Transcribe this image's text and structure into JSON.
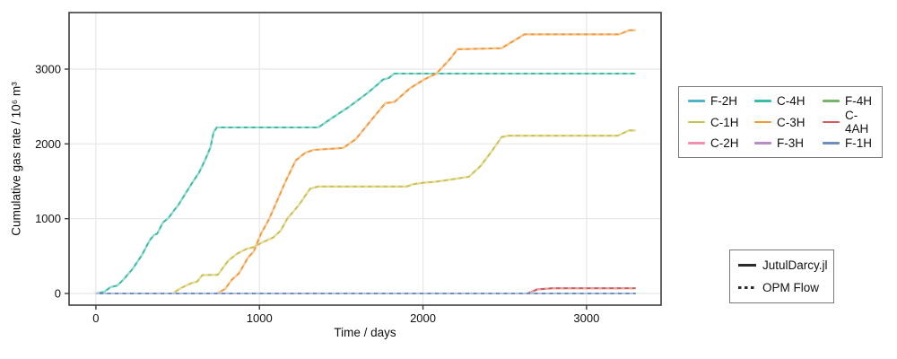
{
  "figure": {
    "background": "#ffffff",
    "axis_color": "#3d3d3d",
    "grid_color": "#e7e7e7",
    "text_color": "#111111",
    "legend_border_color": "#7a7a7a",
    "comparison_line_color": "#2b2b2b"
  },
  "chart_data": {
    "type": "line",
    "title": "",
    "xlabel": "Time / days",
    "ylabel": "Cumulative gas rate / 10⁶ m³",
    "xlim": [
      -164,
      3456
    ],
    "ylim": [
      -156,
      3756
    ],
    "xticks": [
      0,
      1000,
      2000,
      3000
    ],
    "yticks": [
      0,
      1000,
      2000,
      3000
    ],
    "grid": true,
    "legend_position": "right",
    "legend_order": [
      "F-2H",
      "C-4H",
      "F-4H",
      "C-1H",
      "C-3H",
      "C-4AH",
      "C-2H",
      "F-3H",
      "F-1H"
    ],
    "comparison": [
      {
        "label": "JutulDarcy.jl",
        "style": "solid"
      },
      {
        "label": "OPM Flow",
        "style": "dashed"
      }
    ],
    "series": [
      {
        "name": "F-2H",
        "color": "#4FB2C6",
        "t": [
          0,
          3300
        ],
        "v": [
          0,
          0
        ]
      },
      {
        "name": "C-1H",
        "color": "#CCC04F",
        "t": [
          0,
          470,
          510,
          555,
          580,
          620,
          650,
          745,
          810,
          865,
          920,
          965,
          1015,
          1085,
          1130,
          1170,
          1240,
          1310,
          1360,
          1900,
          1950,
          2000,
          2080,
          2160,
          2280,
          2350,
          2420,
          2480,
          2520,
          3190,
          3260,
          3300
        ],
        "v": [
          0,
          0,
          60,
          110,
          135,
          160,
          245,
          250,
          440,
          535,
          595,
          620,
          680,
          750,
          840,
          1000,
          1180,
          1400,
          1430,
          1430,
          1465,
          1480,
          1495,
          1520,
          1560,
          1700,
          1900,
          2090,
          2110,
          2110,
          2180,
          2180
        ]
      },
      {
        "name": "C-2H",
        "color": "#F28FB2",
        "t": [
          0,
          3300
        ],
        "v": [
          0,
          0
        ]
      },
      {
        "name": "C-4H",
        "color": "#3CBCA8",
        "t": [
          0,
          50,
          90,
          130,
          170,
          225,
          280,
          330,
          355,
          375,
          410,
          445,
          485,
          500,
          540,
          595,
          630,
          665,
          700,
          720,
          740,
          1360,
          1440,
          1550,
          1660,
          1715,
          1755,
          1790,
          1825,
          3300
        ],
        "v": [
          0,
          20,
          85,
          105,
          190,
          330,
          510,
          715,
          780,
          800,
          950,
          1010,
          1130,
          1170,
          1310,
          1500,
          1615,
          1770,
          1950,
          2160,
          2220,
          2220,
          2340,
          2500,
          2680,
          2780,
          2860,
          2880,
          2940,
          2940
        ]
      },
      {
        "name": "C-3H",
        "color": "#F09A3C",
        "t": [
          0,
          740,
          790,
          830,
          875,
          930,
          965,
          1010,
          1058,
          1100,
          1160,
          1222,
          1280,
          1331,
          1512,
          1590,
          1677,
          1770,
          1825,
          1918,
          2006,
          2082,
          2170,
          2210,
          2480,
          2620,
          3200,
          3260,
          3300
        ],
        "v": [
          0,
          0,
          60,
          180,
          270,
          480,
          560,
          800,
          990,
          1200,
          1500,
          1780,
          1880,
          1920,
          1945,
          2065,
          2300,
          2545,
          2560,
          2740,
          2860,
          2940,
          3145,
          3265,
          3280,
          3465,
          3465,
          3520,
          3520
        ]
      },
      {
        "name": "F-3H",
        "color": "#B78CC8",
        "t": [
          0,
          3300
        ],
        "v": [
          0,
          0
        ]
      },
      {
        "name": "F-4H",
        "color": "#76B56A",
        "t": [
          0,
          3300
        ],
        "v": [
          0,
          0
        ]
      },
      {
        "name": "C-4AH",
        "color": "#CF5C5C",
        "t": [
          0,
          2640,
          2700,
          2790,
          3300
        ],
        "v": [
          0,
          0,
          55,
          70,
          70
        ]
      },
      {
        "name": "F-1H",
        "color": "#6E8EC0",
        "t": [
          0,
          3300
        ],
        "v": [
          0,
          0
        ]
      }
    ]
  }
}
